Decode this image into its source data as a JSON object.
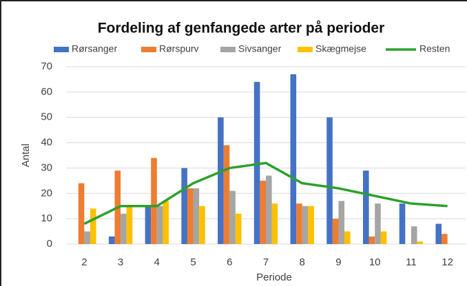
{
  "chart_data": {
    "type": "bar",
    "title": "Fordeling af genfangede arter på perioder",
    "x_label": "Periode",
    "y_label": "Antal",
    "categories": [
      "2",
      "3",
      "4",
      "5",
      "6",
      "7",
      "8",
      "9",
      "10",
      "11",
      "12"
    ],
    "series": [
      {
        "name": "Rørsanger",
        "color": "#4472c4",
        "values": [
          0,
          3,
          15,
          30,
          50,
          64,
          67,
          50,
          29,
          16,
          8
        ]
      },
      {
        "name": "Rørspurv",
        "color": "#ed7d31",
        "values": [
          24,
          29,
          34,
          22,
          39,
          25,
          16,
          10,
          3,
          0,
          4
        ]
      },
      {
        "name": "Sivsanger",
        "color": "#a5a5a5",
        "values": [
          5,
          12,
          15,
          22,
          21,
          27,
          15,
          17,
          16,
          7,
          0
        ]
      },
      {
        "name": "Skægmejse",
        "color": "#ffc000",
        "values": [
          14,
          15,
          17,
          15,
          12,
          16,
          15,
          5,
          5,
          1,
          0
        ]
      },
      {
        "name": "Resten",
        "color": "#2ca02c",
        "type": "line",
        "values": [
          8,
          15,
          15,
          24,
          30,
          32,
          24,
          22,
          19,
          16,
          15
        ]
      }
    ],
    "ylim": [
      0,
      70
    ],
    "yticks": [
      0,
      10,
      20,
      30,
      40,
      50,
      60,
      70
    ],
    "grid": true
  }
}
